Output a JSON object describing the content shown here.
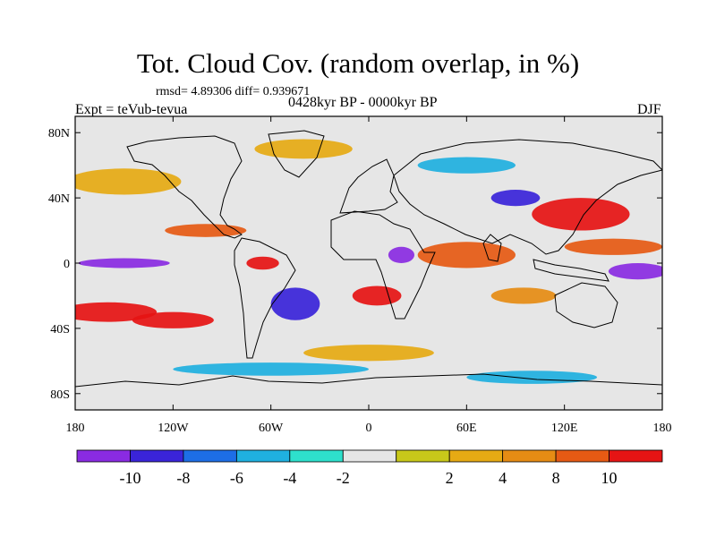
{
  "title": "Tot. Cloud Cov. (random overlap, in %)",
  "stats": "rmsd= 4.89306 diff= 0.939671",
  "experiment": "Expt = teVub-tevua",
  "period": "0428kyr BP - 0000kyr BP",
  "season": "DJF",
  "map": {
    "lon_range": [
      -180,
      180
    ],
    "lat_range": [
      -90,
      90
    ],
    "lat_ticks": [
      {
        "value": 80,
        "label": "80N"
      },
      {
        "value": 40,
        "label": "40N"
      },
      {
        "value": 0,
        "label": "0"
      },
      {
        "value": -40,
        "label": "40S"
      },
      {
        "value": -80,
        "label": "80S"
      }
    ],
    "lon_ticks": [
      {
        "value": -180,
        "label": "180"
      },
      {
        "value": -120,
        "label": "120W"
      },
      {
        "value": -60,
        "label": "60W"
      },
      {
        "value": 0,
        "label": "0"
      },
      {
        "value": 60,
        "label": "60E"
      },
      {
        "value": 120,
        "label": "120E"
      },
      {
        "value": 180,
        "label": "180"
      }
    ],
    "anomaly_blobs": [
      {
        "lon": 130,
        "lat": 30,
        "rx": 30,
        "ry": 10,
        "level": 10
      },
      {
        "lon": -160,
        "lat": -30,
        "rx": 30,
        "ry": 6,
        "level": 10
      },
      {
        "lon": -120,
        "lat": -35,
        "rx": 25,
        "ry": 5,
        "level": 10
      },
      {
        "lon": 5,
        "lat": -20,
        "rx": 15,
        "ry": 6,
        "level": 10
      },
      {
        "lon": -100,
        "lat": 20,
        "rx": 25,
        "ry": 4,
        "level": 8
      },
      {
        "lon": -65,
        "lat": 0,
        "rx": 10,
        "ry": 4,
        "level": 10
      },
      {
        "lon": 150,
        "lat": 10,
        "rx": 30,
        "ry": 5,
        "level": 8
      },
      {
        "lon": 60,
        "lat": 5,
        "rx": 30,
        "ry": 8,
        "level": 8
      },
      {
        "lon": 165,
        "lat": -5,
        "rx": 18,
        "ry": 5,
        "level": -10
      },
      {
        "lon": -150,
        "lat": 0,
        "rx": 28,
        "ry": 3,
        "level": -10
      },
      {
        "lon": 20,
        "lat": 5,
        "rx": 8,
        "ry": 5,
        "level": -10
      },
      {
        "lon": -45,
        "lat": -25,
        "rx": 15,
        "ry": 10,
        "level": -8
      },
      {
        "lon": 90,
        "lat": 40,
        "rx": 15,
        "ry": 5,
        "level": -8
      },
      {
        "lon": 95,
        "lat": -20,
        "rx": 20,
        "ry": 5,
        "level": 6
      },
      {
        "lon": -40,
        "lat": 70,
        "rx": 30,
        "ry": 6,
        "level": 4
      },
      {
        "lon": -150,
        "lat": 50,
        "rx": 35,
        "ry": 8,
        "level": 4
      },
      {
        "lon": 60,
        "lat": 60,
        "rx": 30,
        "ry": 5,
        "level": -4
      },
      {
        "lon": -60,
        "lat": -65,
        "rx": 60,
        "ry": 4,
        "level": -4
      },
      {
        "lon": 100,
        "lat": -70,
        "rx": 40,
        "ry": 4,
        "level": -4
      },
      {
        "lon": 0,
        "lat": -55,
        "rx": 40,
        "ry": 5,
        "level": 4
      }
    ]
  },
  "colorbar": {
    "colors": [
      "#8a2be2",
      "#3a24d9",
      "#1d6ee6",
      "#1fb0e0",
      "#2ee0cc",
      "#e6e6e6",
      "#c8c81a",
      "#e6aa14",
      "#e68c14",
      "#e65a14",
      "#e61414"
    ],
    "labels": [
      "-10",
      "-8",
      "-6",
      "-4",
      "-2",
      "2",
      "4",
      "8",
      "10"
    ]
  }
}
